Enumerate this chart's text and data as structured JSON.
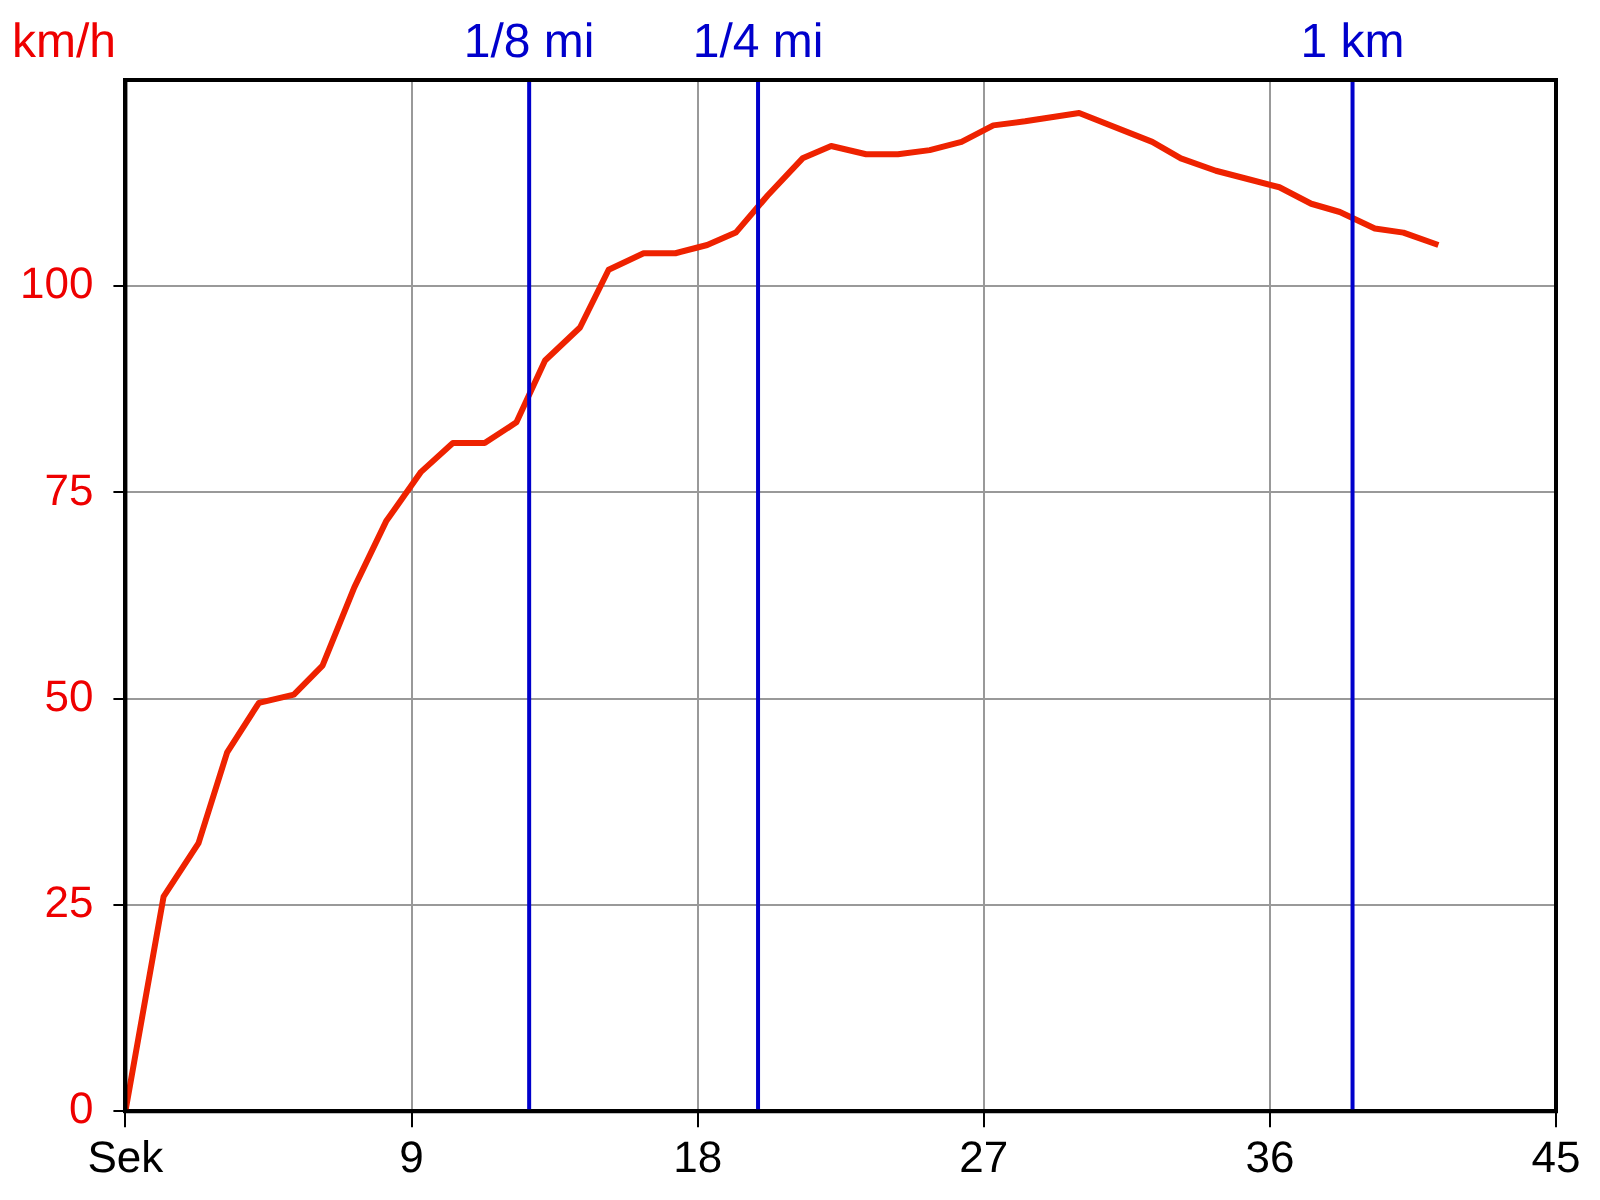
{
  "chart_data": {
    "type": "line",
    "ylabel": "km/h",
    "x": [
      0,
      1.2,
      2.3,
      3.2,
      4.2,
      5.3,
      6.2,
      7.2,
      8.2,
      9.3,
      10.3,
      11.3,
      12.3,
      13.2,
      14.3,
      15.2,
      16.3,
      17.3,
      18.3,
      19.2,
      20.2,
      21.3,
      22.2,
      23.3,
      24.3,
      25.3,
      26.3,
      27.3,
      28.3,
      30,
      32.3,
      33.2,
      34.3,
      35.3,
      36.3,
      37.3,
      38.2,
      39.3,
      40.2,
      41.3
    ],
    "series": [
      {
        "color": "#ee2200",
        "values": [
          0,
          26,
          32.5,
          43.5,
          49.5,
          50.5,
          54,
          63.5,
          71.5,
          77.5,
          81,
          81,
          83.5,
          91,
          95,
          102,
          104,
          104,
          105,
          106.5,
          111,
          115.5,
          117,
          116,
          116,
          116.5,
          117.5,
          119.5,
          120,
          121,
          117.5,
          115.5,
          114,
          113,
          112,
          110,
          109,
          107,
          106.5,
          105
        ]
      }
    ],
    "xlim": [
      0,
      45
    ],
    "xticks": [
      {
        "value": 0,
        "label": "Sek"
      },
      9,
      18,
      27,
      36,
      45
    ],
    "ylim": [
      0,
      125
    ],
    "yticks": [
      0,
      25,
      50,
      75,
      100
    ],
    "grid": true,
    "legend": false,
    "marker": "none",
    "line_style": "solid",
    "ref_lines": [
      {
        "axis": "x",
        "value": 12.7,
        "label": "1/8 mi",
        "color": "#0000cc"
      },
      {
        "axis": "x",
        "value": 19.9,
        "label": "1/4 mi",
        "color": "#0000cc"
      },
      {
        "axis": "x",
        "value": 38.6,
        "label": "1 km",
        "color": "#0000cc"
      }
    ]
  }
}
